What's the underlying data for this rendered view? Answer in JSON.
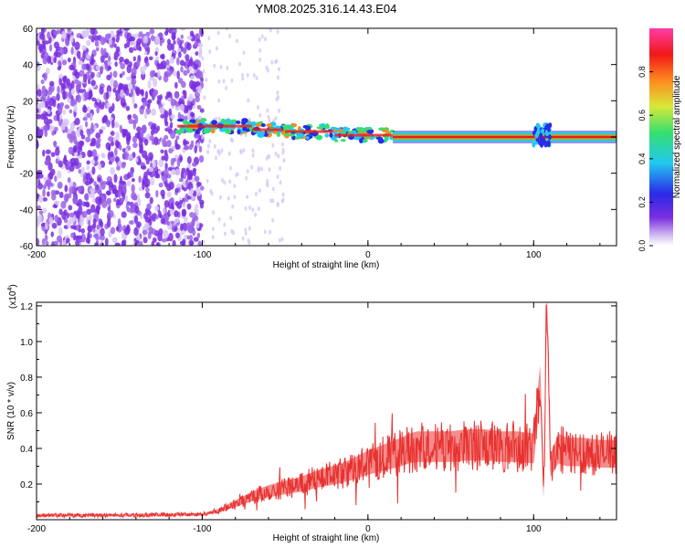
{
  "title": "YM08.2025.316.14.43.E04",
  "colors": {
    "line": "#e8312f",
    "bg": "#ffffff",
    "axis": "#000000",
    "speckle": "#7a2ee0",
    "speckle_light": "#c9a8f2"
  },
  "chart_data": [
    {
      "type": "heatmap",
      "title": "YM08.2025.316.14.43.E04",
      "xlabel": "Height of straight line (km)",
      "ylabel": "Frequency (Hz)",
      "xlim": [
        -200,
        150
      ],
      "ylim": [
        -60,
        60
      ],
      "xticks": [
        -200,
        -100,
        0,
        100
      ],
      "yticks": [
        60,
        40,
        20,
        0,
        -20,
        -40,
        -60
      ],
      "colorbar": {
        "label": "Normalized spectral amplitude",
        "range": [
          0,
          1
        ],
        "ticks": [
          "0.0",
          "0.2",
          "0.4",
          "0.6",
          "0.8"
        ],
        "tick_values": [
          0.0,
          0.2,
          0.4,
          0.6,
          0.8
        ],
        "stops": [
          "#ffffff",
          "#d8c8f5",
          "#7a2ee0",
          "#2a2ae8",
          "#22c8f0",
          "#35e070",
          "#d8e838",
          "#ff8a1e",
          "#f01818",
          "#ff3ca8"
        ]
      },
      "noise_region_x": [
        -200,
        -100
      ],
      "band_center_hz": 0,
      "band_segments": [
        {
          "x_start": -115,
          "x_end": -70,
          "y_center": 6
        },
        {
          "x_start": -70,
          "x_end": -50,
          "y_center": 4
        },
        {
          "x_start": -50,
          "x_end": -20,
          "y_center": 3
        },
        {
          "x_start": -20,
          "x_end": 15,
          "y_center": 1
        },
        {
          "x_start": 15,
          "x_end": 150,
          "y_center": 0
        }
      ],
      "burst_x": [
        100,
        110
      ]
    },
    {
      "type": "line",
      "xlabel": "Height of straight line (km)",
      "ylabel": "SNR (10 * v/v)",
      "multiplier_label": "(x10",
      "multiplier_exp": "4",
      "xlim": [
        -200,
        150
      ],
      "ylim": [
        0,
        1.22
      ],
      "xticks": [
        -200,
        -100,
        0,
        100
      ],
      "yticks": [
        1.2,
        1.0,
        0.8,
        0.6,
        0.4,
        0.2
      ],
      "ytick_labels": [
        "1.2",
        "1.0",
        "0.8",
        "0.6",
        "0.4",
        "0.2"
      ],
      "series": [
        {
          "name": "SNR",
          "x": [
            -200,
            -150,
            -100,
            -90,
            -80,
            -70,
            -60,
            -50,
            -40,
            -30,
            -20,
            -10,
            0,
            10,
            20,
            25,
            30,
            40,
            50,
            60,
            70,
            80,
            90,
            100,
            104,
            106,
            108,
            110,
            115,
            120,
            130,
            140,
            150
          ],
          "values": [
            0.025,
            0.025,
            0.03,
            0.05,
            0.09,
            0.13,
            0.16,
            0.18,
            0.2,
            0.23,
            0.25,
            0.28,
            0.32,
            0.35,
            0.38,
            0.4,
            0.41,
            0.41,
            0.41,
            0.42,
            0.42,
            0.41,
            0.41,
            0.4,
            0.78,
            0.12,
            1.22,
            0.3,
            0.4,
            0.38,
            0.38,
            0.37,
            0.37
          ]
        }
      ]
    }
  ]
}
